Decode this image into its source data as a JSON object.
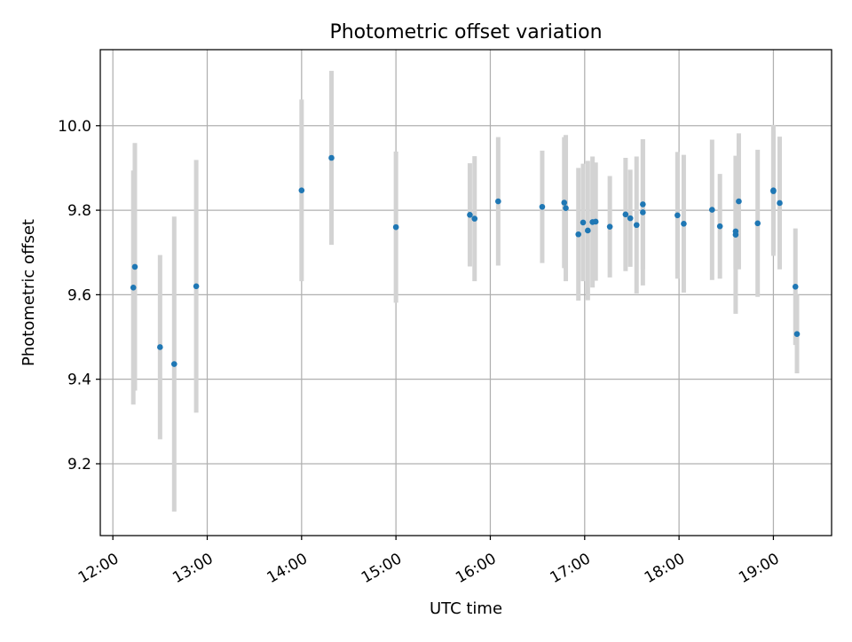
{
  "chart_data": {
    "type": "scatter",
    "title": "Photometric offset variation",
    "xlabel": "UTC time",
    "ylabel": "Photometric offset",
    "xlim": [
      "11:52",
      "19:37"
    ],
    "ylim": [
      9.03,
      10.18
    ],
    "xticks": [
      "12:00",
      "13:00",
      "14:00",
      "15:00",
      "16:00",
      "17:00",
      "18:00",
      "19:00"
    ],
    "yticks": [
      "9.2",
      "9.4",
      "9.6",
      "9.8",
      "10.0"
    ],
    "grid": true,
    "legend": "none",
    "colors": {
      "point": "#1f77b4",
      "errorbar": "#d3d3d3",
      "grid": "#b0b0b0"
    },
    "points": [
      {
        "x": "12:13",
        "y": 9.617,
        "err": 0.277
      },
      {
        "x": "12:14",
        "y": 9.666,
        "err": 0.293
      },
      {
        "x": "12:30",
        "y": 9.476,
        "err": 0.218
      },
      {
        "x": "12:39",
        "y": 9.436,
        "err": 0.349
      },
      {
        "x": "12:53",
        "y": 9.62,
        "err": 0.299
      },
      {
        "x": "14:00",
        "y": 9.847,
        "err": 0.215
      },
      {
        "x": "14:19",
        "y": 9.924,
        "err": 0.206
      },
      {
        "x": "15:00",
        "y": 9.76,
        "err": 0.179
      },
      {
        "x": "15:47",
        "y": 9.789,
        "err": 0.122
      },
      {
        "x": "15:50",
        "y": 9.78,
        "err": 0.148
      },
      {
        "x": "16:05",
        "y": 9.821,
        "err": 0.152
      },
      {
        "x": "16:33",
        "y": 9.808,
        "err": 0.133
      },
      {
        "x": "16:47",
        "y": 9.818,
        "err": 0.155
      },
      {
        "x": "16:48",
        "y": 9.805,
        "err": 0.173
      },
      {
        "x": "16:56",
        "y": 9.743,
        "err": 0.157
      },
      {
        "x": "16:59",
        "y": 9.771,
        "err": 0.139
      },
      {
        "x": "17:02",
        "y": 9.752,
        "err": 0.165
      },
      {
        "x": "17:05",
        "y": 9.772,
        "err": 0.155
      },
      {
        "x": "17:07",
        "y": 9.773,
        "err": 0.14
      },
      {
        "x": "17:16",
        "y": 9.761,
        "err": 0.12
      },
      {
        "x": "17:26",
        "y": 9.79,
        "err": 0.134
      },
      {
        "x": "17:29",
        "y": 9.781,
        "err": 0.115
      },
      {
        "x": "17:33",
        "y": 9.765,
        "err": 0.162
      },
      {
        "x": "17:37",
        "y": 9.814,
        "err": 0.154
      },
      {
        "x": "17:37",
        "y": 9.795,
        "err": 0.173
      },
      {
        "x": "17:59",
        "y": 9.788,
        "err": 0.15
      },
      {
        "x": "18:03",
        "y": 9.768,
        "err": 0.163
      },
      {
        "x": "18:21",
        "y": 9.801,
        "err": 0.166
      },
      {
        "x": "18:26",
        "y": 9.762,
        "err": 0.124
      },
      {
        "x": "18:36",
        "y": 9.742,
        "err": 0.187
      },
      {
        "x": "18:36",
        "y": 9.75,
        "err": 0.089
      },
      {
        "x": "18:38",
        "y": 9.821,
        "err": 0.161
      },
      {
        "x": "18:50",
        "y": 9.769,
        "err": 0.174
      },
      {
        "x": "19:00",
        "y": 9.847,
        "err": 0.155
      },
      {
        "x": "19:00",
        "y": 9.845,
        "err": 0.144
      },
      {
        "x": "19:04",
        "y": 9.817,
        "err": 0.157
      },
      {
        "x": "19:14",
        "y": 9.619,
        "err": 0.138
      },
      {
        "x": "19:15",
        "y": 9.507,
        "err": 0.093
      }
    ]
  }
}
